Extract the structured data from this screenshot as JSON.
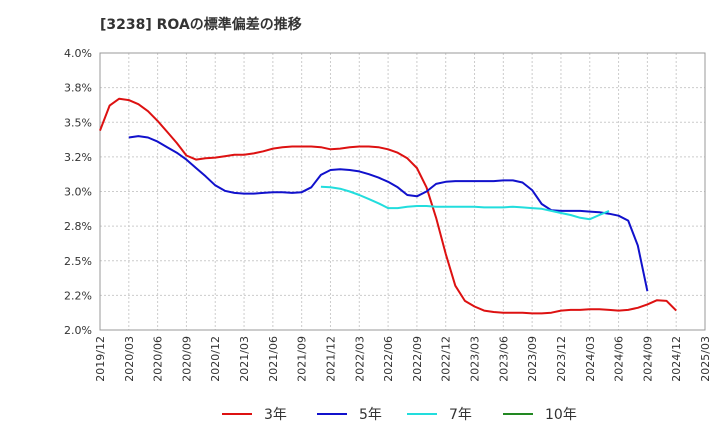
{
  "chart_data": {
    "type": "line",
    "title": "[3238]  ROAの標準偏差の推移",
    "xlabel": "",
    "ylabel": "",
    "x_ticks": [
      "2019/12",
      "2020/03",
      "2020/06",
      "2020/09",
      "2020/12",
      "2021/03",
      "2021/06",
      "2021/09",
      "2021/12",
      "2022/03",
      "2022/06",
      "2022/09",
      "2022/12",
      "2023/03",
      "2023/06",
      "2023/09",
      "2023/12",
      "2024/03",
      "2024/06",
      "2024/09",
      "2024/12",
      "2025/03"
    ],
    "y_ticks": [
      "2.0%",
      "2.2%",
      "2.5%",
      "2.8%",
      "3.0%",
      "3.2%",
      "3.5%",
      "3.8%",
      "4.0%"
    ],
    "ylim": [
      2.0,
      4.0
    ],
    "grid": true,
    "legend_position": "bottom",
    "series": [
      {
        "name": "3年",
        "color": "#dd1111",
        "x_start_index": 0,
        "values": [
          3.44,
          3.62,
          3.67,
          3.66,
          3.63,
          3.58,
          3.51,
          3.43,
          3.35,
          3.26,
          3.23,
          3.24,
          3.245,
          3.255,
          3.265,
          3.265,
          3.275,
          3.29,
          3.31,
          3.32,
          3.325,
          3.325,
          3.325,
          3.32,
          3.305,
          3.31,
          3.32,
          3.325,
          3.325,
          3.32,
          3.305,
          3.28,
          3.24,
          3.17,
          3.03,
          2.81,
          2.55,
          2.32,
          2.21,
          2.17,
          2.14,
          2.13,
          2.125,
          2.125,
          2.125,
          2.12,
          2.12,
          2.125,
          2.14,
          2.145,
          2.145,
          2.15,
          2.15,
          2.145,
          2.14,
          2.145,
          2.16,
          2.185,
          2.215,
          2.21,
          2.14
        ]
      },
      {
        "name": "5年",
        "color": "#1111cc",
        "x_start_index": 3,
        "values": [
          3.39,
          3.4,
          3.39,
          3.36,
          3.32,
          3.28,
          3.23,
          3.17,
          3.11,
          3.045,
          3.005,
          2.99,
          2.985,
          2.985,
          2.99,
          2.995,
          2.995,
          2.99,
          2.995,
          3.03,
          3.12,
          3.155,
          3.16,
          3.155,
          3.145,
          3.125,
          3.1,
          3.07,
          3.03,
          2.975,
          2.965,
          3.0,
          3.055,
          3.07,
          3.075,
          3.075,
          3.075,
          3.075,
          3.075,
          3.08,
          3.08,
          3.065,
          3.01,
          2.91,
          2.865,
          2.86,
          2.86,
          2.86,
          2.855,
          2.85,
          2.84,
          2.825,
          2.79,
          2.61,
          2.28
        ]
      },
      {
        "name": "7年",
        "color": "#22dddd",
        "x_start_index": 23,
        "values": [
          3.035,
          3.03,
          3.02,
          3.0,
          2.975,
          2.945,
          2.915,
          2.88,
          2.88,
          2.89,
          2.895,
          2.895,
          2.89,
          2.89,
          2.89,
          2.89,
          2.89,
          2.885,
          2.885,
          2.885,
          2.89,
          2.885,
          2.88,
          2.875,
          2.86,
          2.845,
          2.83,
          2.81,
          2.8,
          2.83,
          2.86
        ]
      },
      {
        "name": "10年",
        "color": "#228822",
        "x_start_index": 0,
        "values": []
      }
    ]
  }
}
